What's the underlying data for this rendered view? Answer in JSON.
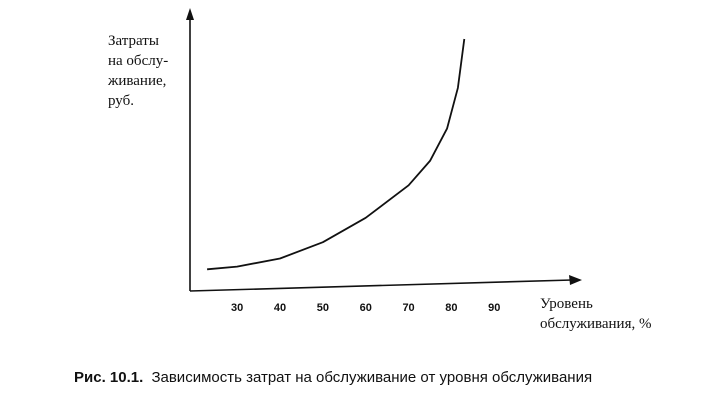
{
  "chart_data": {
    "type": "line",
    "y_label": [
      "Затраты",
      "на обслу-",
      "живание,",
      "руб."
    ],
    "x_label": [
      "Уровень",
      "обслуживания, %"
    ],
    "caption_label": "Рис. 10.1.",
    "caption": "Зависимость затрат на обслуживание от уровня обслуживания",
    "x": [
      23,
      30,
      40,
      50,
      60,
      70,
      75,
      79,
      81.5,
      83
    ],
    "series": [
      {
        "color": "#111111",
        "values": [
          8,
          9,
          12,
          18,
          27,
          39,
          48,
          60,
          75,
          93
        ]
      }
    ],
    "xlim": [
      19,
      110
    ],
    "ylim": [
      0,
      100
    ],
    "xticks": [
      30,
      40,
      50,
      60,
      70,
      80,
      90
    ]
  }
}
